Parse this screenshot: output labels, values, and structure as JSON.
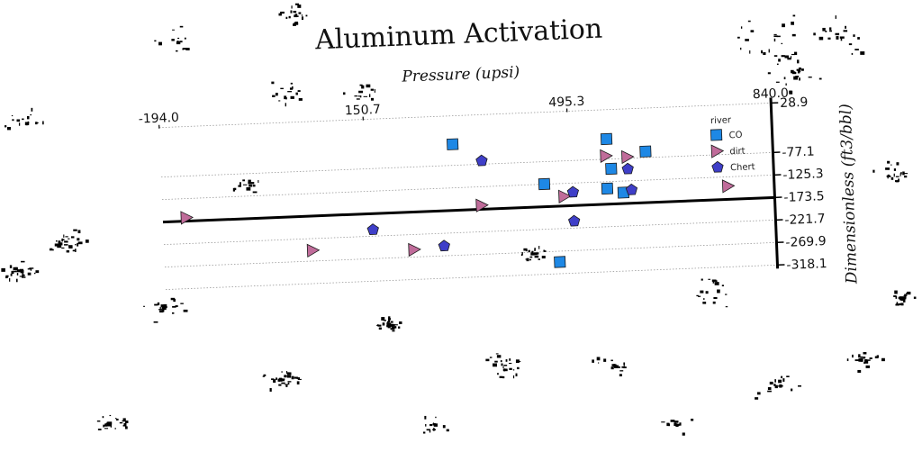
{
  "chart_data": {
    "type": "scatter",
    "title": "Aluminum Activation",
    "xlabel": "Pressure (upsi)",
    "ylabel": "Dimensionless (ft3/bbl)",
    "xlim": [
      -194.0,
      840.0
    ],
    "ylim": [
      -318.1,
      28.9
    ],
    "xticks": [
      "-194.0",
      "150.7",
      "495.3",
      "840.0"
    ],
    "yticks": [
      "28.9",
      "-77.1",
      "-125.3",
      "-173.5",
      "-221.7",
      "-269.9",
      "-318.1"
    ],
    "grid": true,
    "legend": {
      "title": "river",
      "position": "top-right"
    },
    "series": [
      {
        "name": "CO",
        "marker": "square",
        "color": "#1e88e5",
        "points": [
          {
            "x": 300,
            "y": -32
          },
          {
            "x": 560,
            "y": -34
          },
          {
            "x": 625,
            "y": -64
          },
          {
            "x": 566,
            "y": -98
          },
          {
            "x": 452,
            "y": -125
          },
          {
            "x": 558,
            "y": -140
          },
          {
            "x": 585,
            "y": -150
          },
          {
            "x": 473,
            "y": -293
          }
        ]
      },
      {
        "name": "dirt",
        "marker": "triangle-right",
        "color": "#c06c9a",
        "points": [
          {
            "x": -154,
            "y": -166
          },
          {
            "x": 345,
            "y": -165
          },
          {
            "x": 485,
            "y": -153
          },
          {
            "x": 558,
            "y": -70
          },
          {
            "x": 594,
            "y": -74
          },
          {
            "x": 762,
            "y": -145
          },
          {
            "x": 228,
            "y": -254
          },
          {
            "x": 57,
            "y": -247
          }
        ]
      },
      {
        "name": "Chert",
        "marker": "pentagon",
        "color": "#3f3fc8",
        "points": [
          {
            "x": 348,
            "y": -70
          },
          {
            "x": 594,
            "y": -100
          },
          {
            "x": 500,
            "y": -145
          },
          {
            "x": 599,
            "y": -145
          },
          {
            "x": 160,
            "y": -208
          },
          {
            "x": 500,
            "y": -207
          },
          {
            "x": 279,
            "y": -249
          }
        ]
      }
    ],
    "reference_line": {
      "y": -173.5
    }
  }
}
